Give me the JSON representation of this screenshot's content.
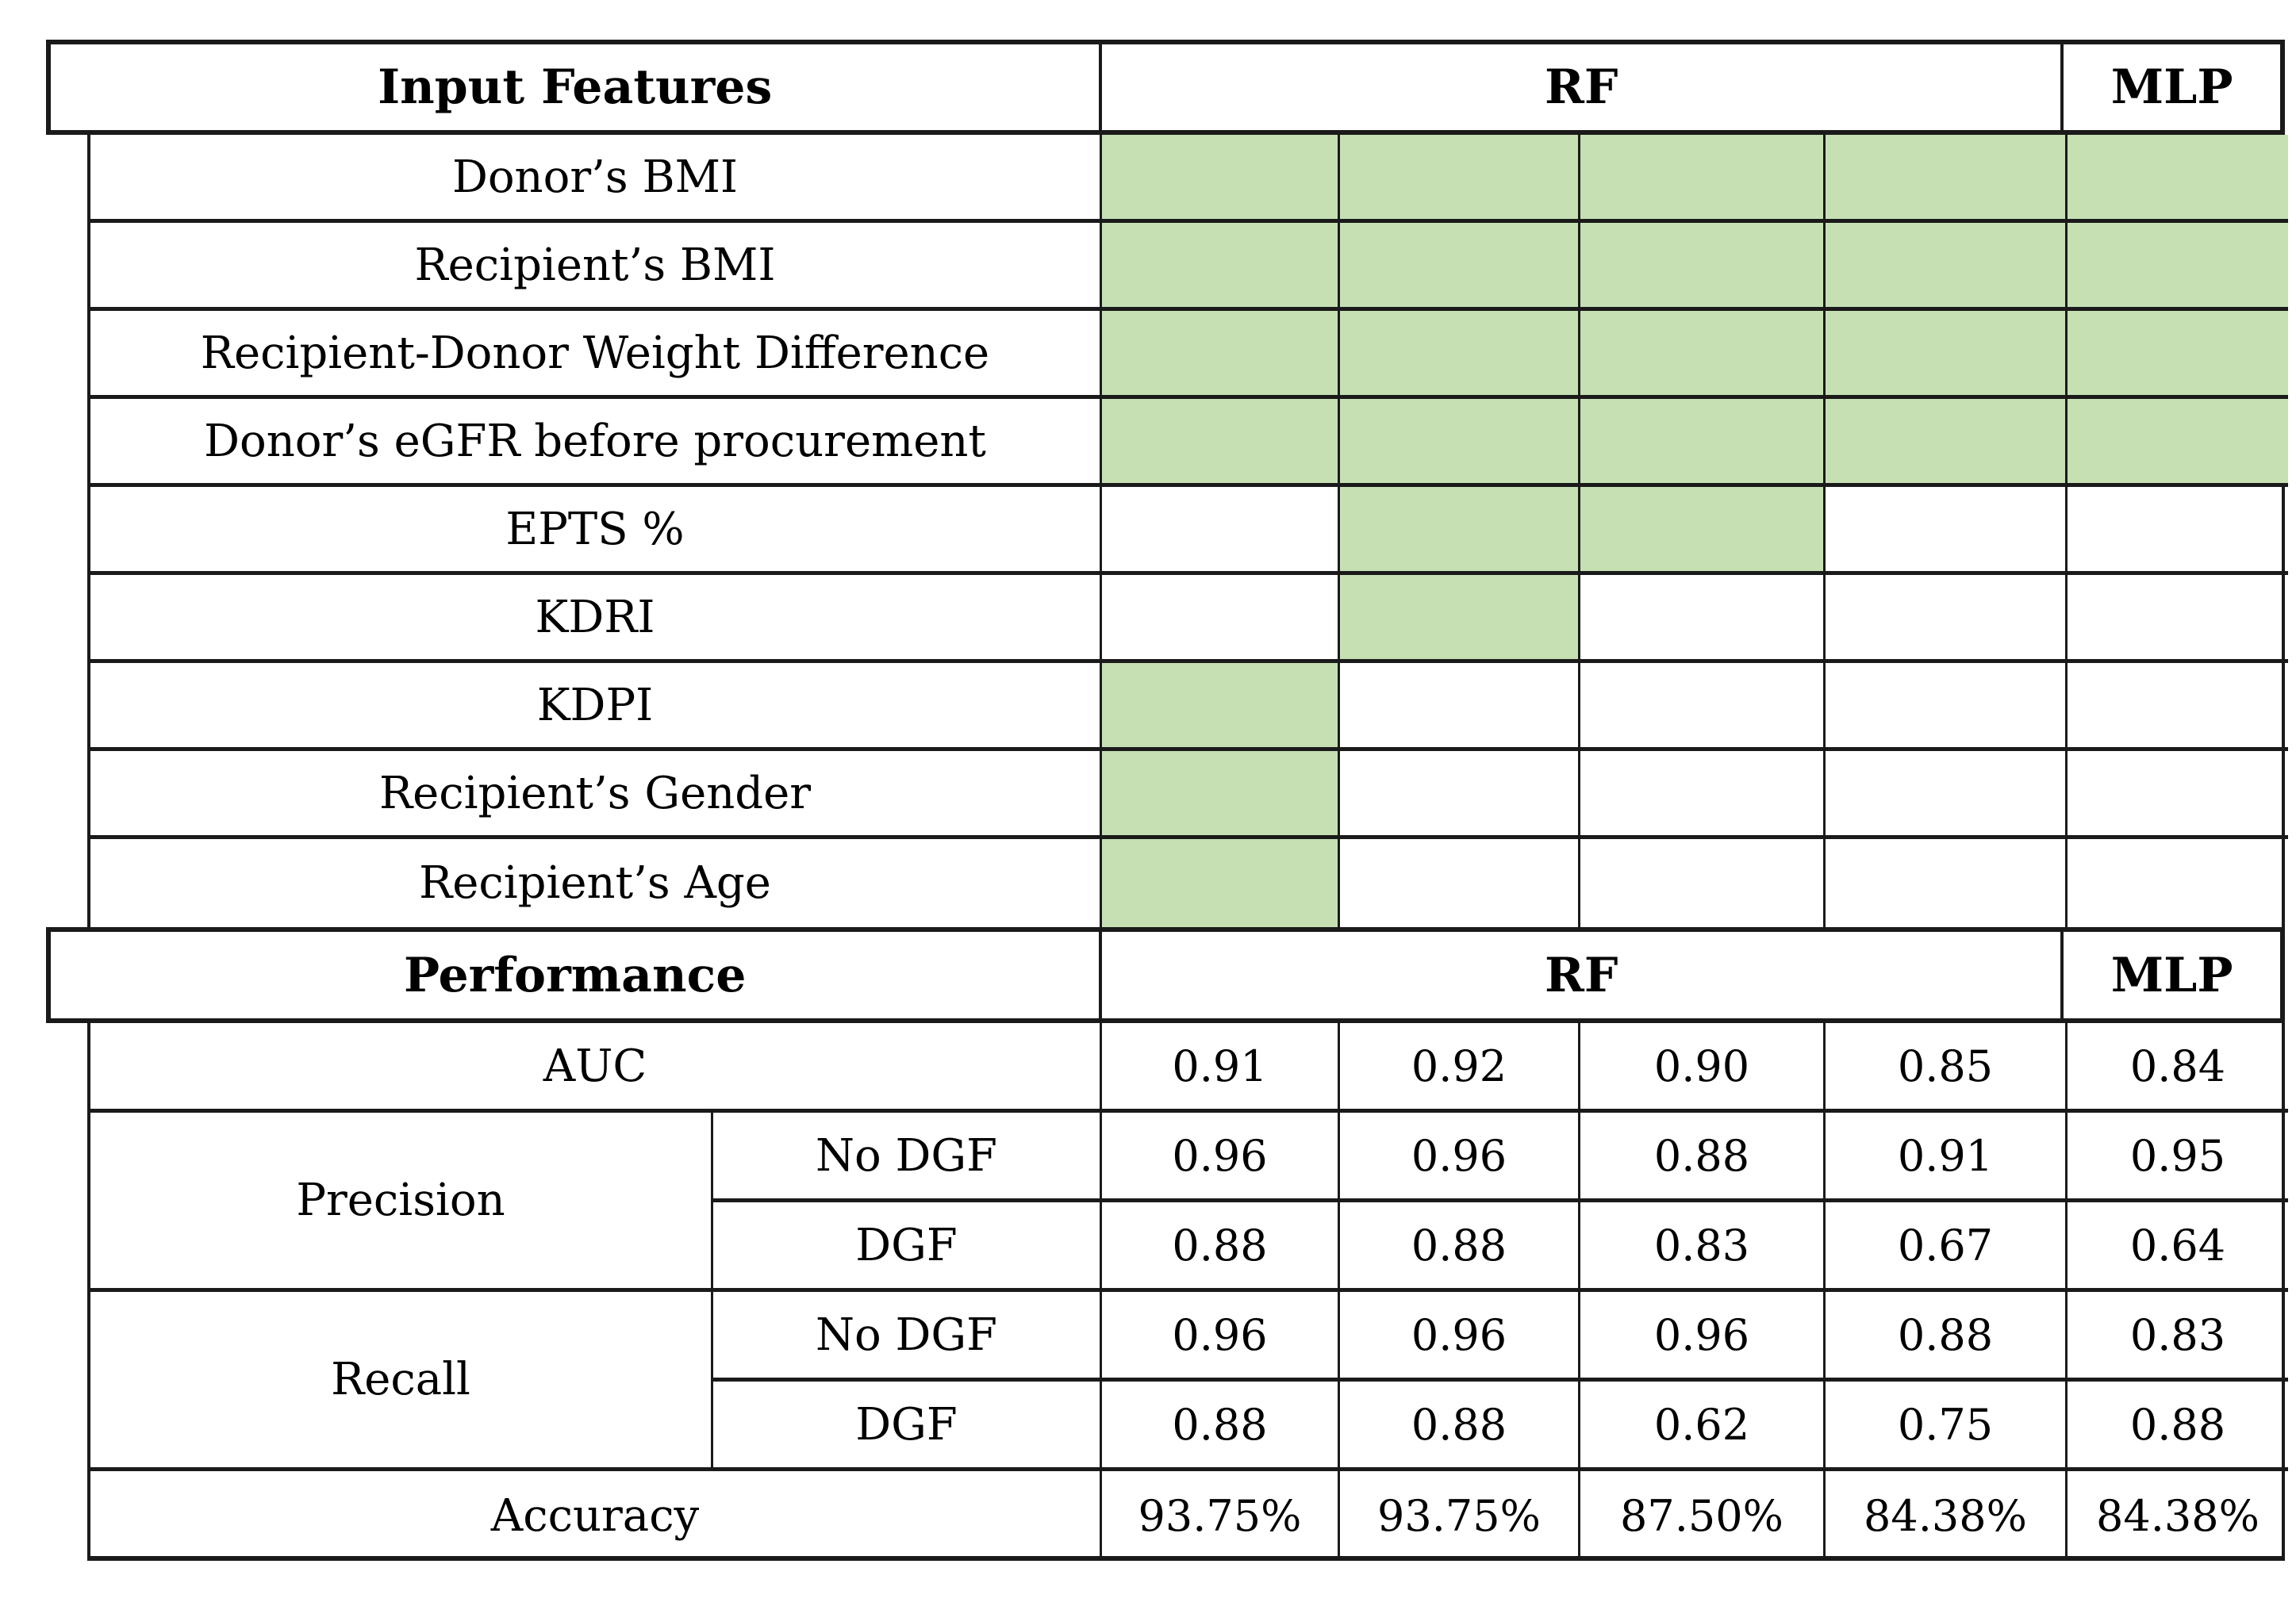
{
  "colors": {
    "highlight": "#c6e0b4",
    "line": "#1a1a1a"
  },
  "input_features": {
    "header": {
      "label": "Input Features",
      "rf": "RF",
      "mlp": "MLP"
    },
    "rows": [
      {
        "label": "Donor’s BMI",
        "included": [
          true,
          true,
          true,
          true,
          true
        ]
      },
      {
        "label": "Recipient’s BMI",
        "included": [
          true,
          true,
          true,
          true,
          true
        ]
      },
      {
        "label": "Recipient-Donor Weight Difference",
        "included": [
          true,
          true,
          true,
          true,
          true
        ]
      },
      {
        "label": "Donor’s eGFR before procurement",
        "included": [
          true,
          true,
          true,
          true,
          true
        ]
      },
      {
        "label": "EPTS %",
        "included": [
          false,
          true,
          true,
          false,
          false
        ]
      },
      {
        "label": "KDRI",
        "included": [
          false,
          true,
          false,
          false,
          false
        ]
      },
      {
        "label": "KDPI",
        "included": [
          true,
          false,
          false,
          false,
          false
        ]
      },
      {
        "label": "Recipient’s Gender",
        "included": [
          true,
          false,
          false,
          false,
          false
        ]
      },
      {
        "label": "Recipient’s Age",
        "included": [
          true,
          false,
          false,
          false,
          false
        ]
      }
    ]
  },
  "performance": {
    "header": {
      "label": "Performance",
      "rf": "RF",
      "mlp": "MLP"
    },
    "auc": {
      "label": "AUC",
      "values": [
        "0.91",
        "0.92",
        "0.90",
        "0.85",
        "0.84"
      ]
    },
    "precision": {
      "label": "Precision",
      "sub": [
        {
          "label": "No DGF",
          "values": [
            "0.96",
            "0.96",
            "0.88",
            "0.91",
            "0.95"
          ]
        },
        {
          "label": "DGF",
          "values": [
            "0.88",
            "0.88",
            "0.83",
            "0.67",
            "0.64"
          ]
        }
      ]
    },
    "recall": {
      "label": "Recall",
      "sub": [
        {
          "label": "No DGF",
          "values": [
            "0.96",
            "0.96",
            "0.96",
            "0.88",
            "0.83"
          ]
        },
        {
          "label": "DGF",
          "values": [
            "0.88",
            "0.88",
            "0.62",
            "0.75",
            "0.88"
          ]
        }
      ]
    },
    "accuracy": {
      "label": "Accuracy",
      "values": [
        "93.75%",
        "93.75%",
        "87.50%",
        "84.38%",
        "84.38%"
      ]
    }
  }
}
